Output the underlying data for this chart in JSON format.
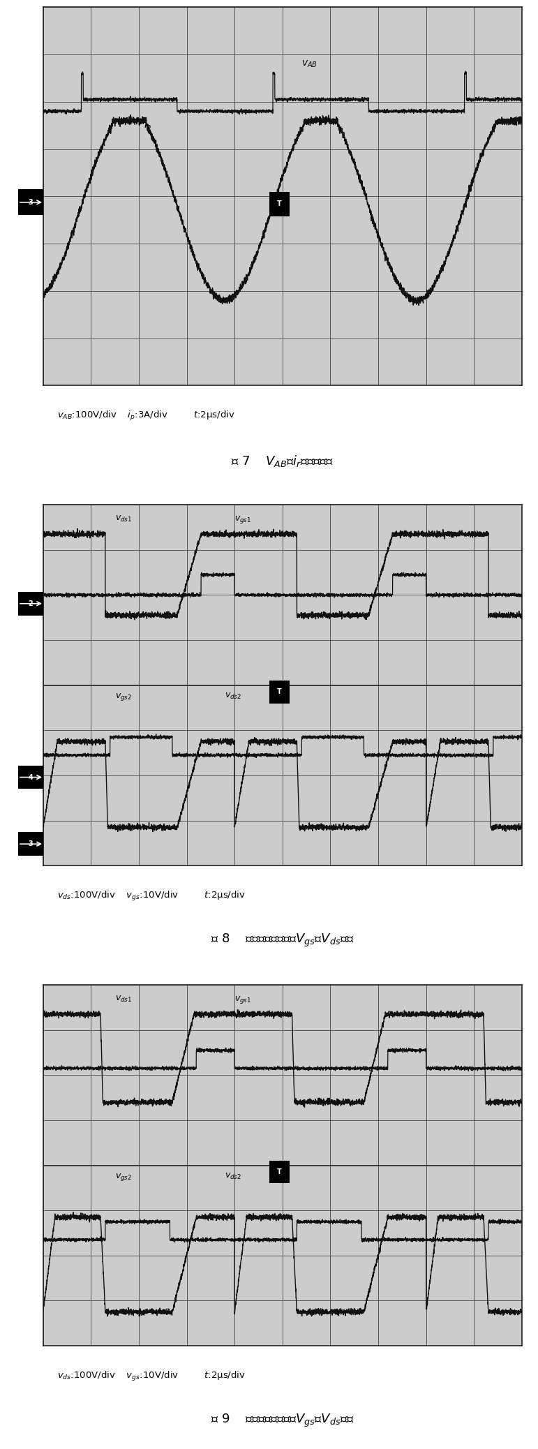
{
  "fig_width": 7.71,
  "fig_height": 20.76,
  "bg_color": "#ffffff",
  "signal_color": "#111111",
  "panel_bg": "#cccccc",
  "grid_color": "#555555",
  "caption1_scale": "$v_{AB}$:100V/div    $i_p$:3A/div         $t$:2μs/div",
  "caption1_title": "图 7    $V_{AB}$和$i_r$的实验波形",
  "caption2_scale": "$v_{ds}$:100V/div    $v_{gs}$:10V/div         $t$:2μs/div",
  "caption2_title": "图 8    满载时两主开关的$V_{gs}$和$V_{ds}$波形",
  "caption3_scale": "$v_{ds}$:100V/div    $v_{gs}$:10V/div         $t$:2μs/div",
  "caption3_title": "图 9    轻载时两主开关的$V_{gs}$和$V_{ds}$波形"
}
